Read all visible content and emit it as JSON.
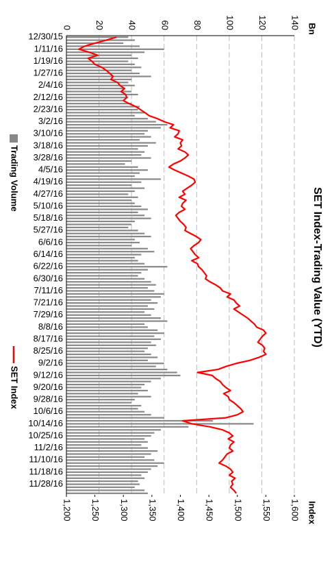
{
  "chart_data": {
    "type": "bar_line",
    "title": "SET Index-Trading Value (YTD)",
    "y_label": "Bn",
    "y2_label": "Index",
    "categories": [
      "12/30/15",
      null,
      null,
      null,
      "1/11/16",
      null,
      null,
      null,
      "1/19/16",
      null,
      null,
      null,
      "1/27/16",
      null,
      null,
      null,
      "2/4/16",
      null,
      null,
      null,
      "2/12/16",
      null,
      null,
      null,
      "2/23/16",
      null,
      null,
      null,
      "3/2/16",
      null,
      null,
      null,
      "3/10/16",
      null,
      null,
      null,
      "3/18/16",
      null,
      null,
      null,
      "3/28/16",
      null,
      null,
      null,
      "4/5/16",
      null,
      null,
      null,
      "4/19/16",
      null,
      null,
      null,
      "4/27/16",
      null,
      null,
      null,
      "5/10/16",
      null,
      null,
      null,
      "5/18/16",
      null,
      null,
      null,
      "5/27/16",
      null,
      null,
      null,
      "6/6/16",
      null,
      null,
      null,
      "6/14/16",
      null,
      null,
      null,
      "6/22/16",
      null,
      null,
      null,
      "6/30/16",
      null,
      null,
      null,
      "7/11/16",
      null,
      null,
      null,
      "7/21/16",
      null,
      null,
      null,
      "7/29/16",
      null,
      null,
      null,
      "8/8/16",
      null,
      null,
      null,
      "8/17/16",
      null,
      null,
      null,
      "8/25/16",
      null,
      null,
      null,
      "9/2/16",
      null,
      null,
      null,
      "9/12/16",
      null,
      null,
      null,
      "9/20/16",
      null,
      null,
      null,
      "9/28/16",
      null,
      null,
      null,
      "10/6/16",
      null,
      null,
      null,
      "10/14/16",
      null,
      null,
      null,
      "10/25/16",
      null,
      null,
      null,
      "11/2/16",
      null,
      null,
      null,
      "11/10/16",
      null,
      null,
      null,
      "11/18/16",
      null,
      null,
      null,
      "11/28/16",
      null,
      null,
      null
    ],
    "series": [
      {
        "name": "Trading Volume",
        "color": "#888888",
        "kind": "bar",
        "values": [
          38,
          42,
          35,
          45,
          60,
          48,
          40,
          44,
          38,
          42,
          46,
          40,
          45,
          52,
          40,
          38,
          42,
          36,
          40,
          44,
          38,
          35,
          40,
          45,
          44,
          48,
          42,
          50,
          55,
          62,
          58,
          50,
          48,
          52,
          45,
          55,
          50,
          44,
          48,
          46,
          52,
          40,
          36,
          44,
          50,
          45,
          42,
          58,
          46,
          40,
          48,
          42,
          38,
          44,
          40,
          42,
          46,
          50,
          44,
          48,
          52,
          42,
          40,
          38,
          44,
          48,
          52,
          42,
          45,
          40,
          50,
          54,
          46,
          42,
          44,
          48,
          62,
          50,
          46,
          44,
          48,
          52,
          55,
          50,
          54,
          60,
          58,
          52,
          56,
          50,
          54,
          48,
          52,
          58,
          62,
          48,
          50,
          56,
          60,
          54,
          58,
          52,
          55,
          50,
          48,
          52,
          56,
          50,
          60,
          55,
          62,
          68,
          70,
          58,
          52,
          48,
          46,
          50,
          44,
          52,
          42,
          40,
          46,
          44,
          48,
          52,
          60,
          90,
          115,
          75,
          58,
          54,
          52,
          48,
          50,
          46,
          50,
          56,
          52,
          48,
          54,
          60,
          56,
          52,
          50,
          46,
          48,
          44,
          45,
          42,
          48,
          50
        ]
      },
      {
        "name": "SET Index",
        "color": "#ff0000",
        "kind": "line",
        "axis": "y2",
        "values": [
          1288,
          1270,
          1250,
          1232,
          1222,
          1240,
          1255,
          1238,
          1245,
          1250,
          1262,
          1270,
          1276,
          1282,
          1278,
          1290,
          1294,
          1302,
          1296,
          1304,
          1306,
          1300,
          1310,
          1322,
          1330,
          1338,
          1345,
          1360,
          1372,
          1388,
          1382,
          1398,
          1396,
          1390,
          1404,
          1400,
          1402,
          1396,
          1408,
          1414,
          1408,
          1400,
          1388,
          1380,
          1390,
          1402,
          1414,
          1424,
          1426,
          1420,
          1412,
          1404,
          1408,
          1398,
          1410,
          1404,
          1402,
          1408,
          1398,
          1392,
          1396,
          1400,
          1406,
          1410,
          1408,
          1418,
          1428,
          1436,
          1432,
          1424,
          1418,
          1422,
          1426,
          1432,
          1420,
          1430,
          1432,
          1438,
          1442,
          1446,
          1444,
          1452,
          1462,
          1470,
          1474,
          1488,
          1482,
          1494,
          1498,
          1504,
          1494,
          1502,
          1510,
          1518,
          1524,
          1530,
          1534,
          1546,
          1550,
          1544,
          1540,
          1536,
          1544,
          1548,
          1546,
          1550,
          1538,
          1522,
          1498,
          1480,
          1466,
          1430,
          1456,
          1462,
          1470,
          1474,
          1480,
          1488,
          1476,
          1484,
          1486,
          1494,
          1500,
          1506,
          1510,
          1500,
          1480,
          1404,
          1420,
          1452,
          1474,
          1486,
          1492,
          1484,
          1494,
          1488,
          1486,
          1492,
          1482,
          1478,
          1474,
          1468,
          1480,
          1488,
          1492,
          1486,
          1496,
          1490,
          1492,
          1488,
          1494,
          1498
        ]
      }
    ],
    "ylim": [
      0,
      140
    ],
    "yticks": [
      0,
      20,
      40,
      60,
      80,
      100,
      120,
      140
    ],
    "y2lim": [
      1200,
      1600
    ],
    "y2ticks": [
      {
        "value": 1200,
        "label": "1,200"
      },
      {
        "value": 1250,
        "label": "1,250"
      },
      {
        "value": 1300,
        "label": "1,300"
      },
      {
        "value": 1350,
        "label": "1,350"
      },
      {
        "value": 1400,
        "label": "1,400"
      },
      {
        "value": 1450,
        "label": "1,450"
      },
      {
        "value": 1500,
        "label": "1,500"
      },
      {
        "value": 1550,
        "label": "1,550"
      },
      {
        "value": 1600,
        "label": "1,600"
      }
    ],
    "grid": true,
    "legend": "bottom"
  }
}
